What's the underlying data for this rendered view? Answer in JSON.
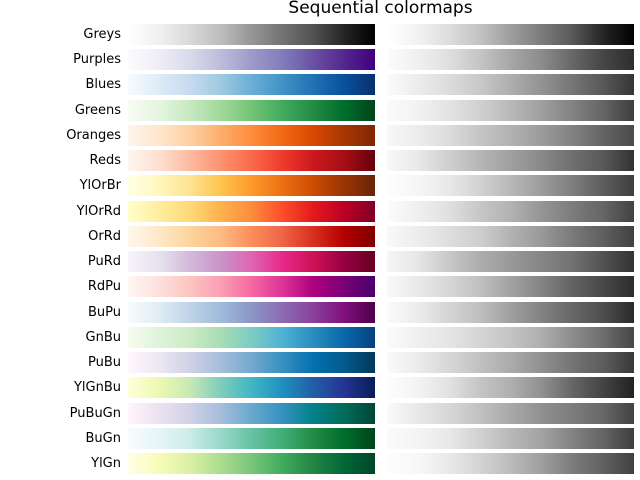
{
  "chart_data": {
    "type": "heatmap",
    "title": "Sequential colormaps",
    "panels": [
      "color",
      "grayscale-lightness"
    ],
    "colormaps": [
      {
        "name": "Greys",
        "colors": [
          "#ffffff",
          "#f0f0f0",
          "#d9d9d9",
          "#bdbdbd",
          "#969696",
          "#737373",
          "#525252",
          "#252525",
          "#000000"
        ]
      },
      {
        "name": "Purples",
        "colors": [
          "#fcfbfd",
          "#efedf5",
          "#dadaeb",
          "#bcbddc",
          "#9e9ac8",
          "#807dba",
          "#6a51a3",
          "#54278f",
          "#3f007d"
        ]
      },
      {
        "name": "Blues",
        "colors": [
          "#f7fbff",
          "#deebf7",
          "#c6dbef",
          "#9ecae1",
          "#6baed6",
          "#4292c6",
          "#2171b5",
          "#08519c",
          "#08306b"
        ]
      },
      {
        "name": "Greens",
        "colors": [
          "#f7fcf5",
          "#e5f5e0",
          "#c7e9c0",
          "#a1d99b",
          "#74c476",
          "#41ab5d",
          "#238b45",
          "#006d2c",
          "#00441b"
        ]
      },
      {
        "name": "Oranges",
        "colors": [
          "#fff5eb",
          "#fee6ce",
          "#fdd0a2",
          "#fdae6b",
          "#fd8d3c",
          "#f16913",
          "#d94801",
          "#a63603",
          "#7f2704"
        ]
      },
      {
        "name": "Reds",
        "colors": [
          "#fff5f0",
          "#fee0d2",
          "#fcbba1",
          "#fc9272",
          "#fb6a4a",
          "#ef3b2c",
          "#cb181d",
          "#a50f15",
          "#67000d"
        ]
      },
      {
        "name": "YlOrBr",
        "colors": [
          "#ffffe5",
          "#fff7bc",
          "#fee391",
          "#fec44f",
          "#fe9929",
          "#ec7014",
          "#cc4c02",
          "#993404",
          "#662506"
        ]
      },
      {
        "name": "YlOrRd",
        "colors": [
          "#ffffcc",
          "#ffeda0",
          "#fed976",
          "#feb24c",
          "#fd8d3c",
          "#fc4e2a",
          "#e31a1c",
          "#bd0026",
          "#800026"
        ]
      },
      {
        "name": "OrRd",
        "colors": [
          "#fff7ec",
          "#fee8c8",
          "#fdd49e",
          "#fdbb84",
          "#fc8d59",
          "#ef6548",
          "#d7301f",
          "#b30000",
          "#7f0000"
        ]
      },
      {
        "name": "PuRd",
        "colors": [
          "#f7f4f9",
          "#e7e1ef",
          "#d4b9da",
          "#c994c7",
          "#df65b0",
          "#e7298a",
          "#ce1256",
          "#980043",
          "#67001f"
        ]
      },
      {
        "name": "RdPu",
        "colors": [
          "#fff7f3",
          "#fde0dd",
          "#fcc5c0",
          "#fa9fb5",
          "#f768a1",
          "#dd3497",
          "#ae017e",
          "#7a0177",
          "#49006a"
        ]
      },
      {
        "name": "BuPu",
        "colors": [
          "#f7fcfd",
          "#e0ecf4",
          "#bfd3e6",
          "#9ebcda",
          "#8c96c6",
          "#8c6bb1",
          "#88419d",
          "#810f7c",
          "#4d004b"
        ]
      },
      {
        "name": "GnBu",
        "colors": [
          "#f7fcf0",
          "#e0f3db",
          "#ccebc5",
          "#a8ddb5",
          "#7bccc4",
          "#4eb3d3",
          "#2b8cbe",
          "#0868ac",
          "#084081"
        ]
      },
      {
        "name": "PuBu",
        "colors": [
          "#fff7fb",
          "#ece7f2",
          "#d0d1e6",
          "#a6bddb",
          "#74a9cf",
          "#3690c0",
          "#0570b0",
          "#045a8d",
          "#023858"
        ]
      },
      {
        "name": "YlGnBu",
        "colors": [
          "#ffffd9",
          "#edf8b1",
          "#c7e9b4",
          "#7fcdbb",
          "#41b6c4",
          "#1d91c0",
          "#225ea8",
          "#253494",
          "#081d58"
        ]
      },
      {
        "name": "PuBuGn",
        "colors": [
          "#fff7fb",
          "#ece2f0",
          "#d0d1e6",
          "#a6bddb",
          "#67a9cf",
          "#3690c0",
          "#02818a",
          "#016c59",
          "#014636"
        ]
      },
      {
        "name": "BuGn",
        "colors": [
          "#f7fcfd",
          "#e5f5f9",
          "#ccece6",
          "#99d8c9",
          "#66c2a4",
          "#41ae76",
          "#238b45",
          "#006d2c",
          "#00441b"
        ]
      },
      {
        "name": "YlGn",
        "colors": [
          "#ffffe5",
          "#f7fcb9",
          "#d9f0a3",
          "#addd8e",
          "#78c679",
          "#41ab5d",
          "#238445",
          "#006837",
          "#004529"
        ]
      }
    ]
  }
}
